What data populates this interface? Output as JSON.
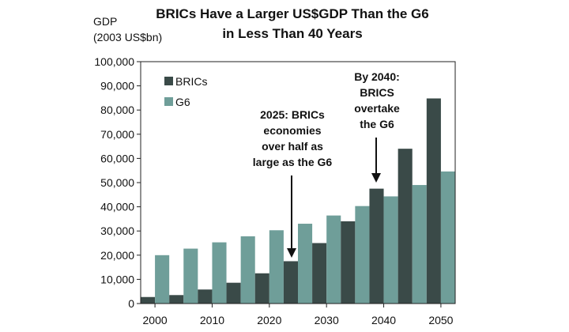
{
  "chart_data": {
    "type": "bar",
    "title_line1": "BRICs Have a Larger US$GDP Than the G6",
    "title_line2": "in Less Than 40 Years",
    "ylabel_line1": "GDP",
    "ylabel_line2": "(2003 US$bn)",
    "ylim": [
      0,
      100000
    ],
    "yticks": [
      "0",
      "10,000",
      "20,000",
      "30,000",
      "40,000",
      "50,000",
      "60,000",
      "70,000",
      "80,000",
      "90,000",
      "100,000"
    ],
    "ytick_values": [
      0,
      10000,
      20000,
      30000,
      40000,
      50000,
      60000,
      70000,
      80000,
      90000,
      100000
    ],
    "categories": [
      "2000",
      "2005",
      "2010",
      "2015",
      "2020",
      "2025",
      "2030",
      "2035",
      "2040",
      "2045",
      "2050"
    ],
    "xtick_labels": [
      "2000",
      "2010",
      "2020",
      "2030",
      "2040",
      "2050"
    ],
    "series": [
      {
        "name": "BRICs",
        "color": "#3a4a48",
        "values": [
          2700,
          3500,
          5800,
          8600,
          12500,
          17500,
          25000,
          34000,
          47500,
          64000,
          84800
        ]
      },
      {
        "name": "G6",
        "color": "#6f9e99",
        "values": [
          20000,
          22700,
          25300,
          27800,
          30300,
          33000,
          36400,
          40300,
          44300,
          49000,
          54600
        ]
      }
    ],
    "legend_position": "top-left",
    "grid": false,
    "annotations": [
      {
        "lines": [
          "2025: BRICs",
          "economies",
          "over half as",
          "large as the G6"
        ],
        "category": "2025"
      },
      {
        "lines": [
          "By 2040:",
          "BRICS",
          "overtake",
          "the G6"
        ],
        "category": "2040"
      }
    ]
  }
}
